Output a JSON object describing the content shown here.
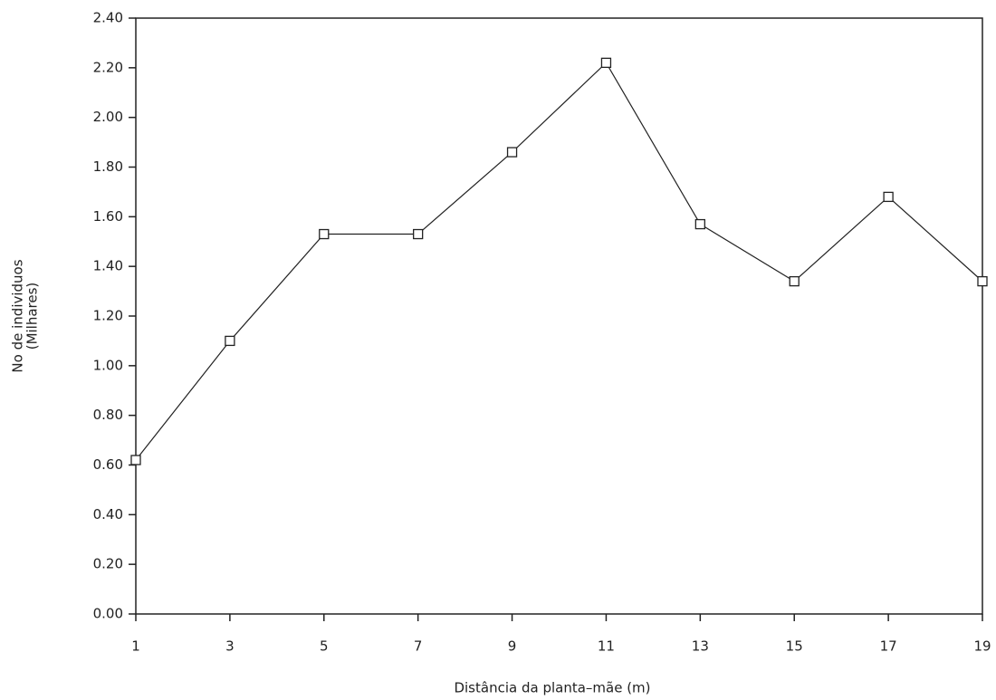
{
  "chart_data": {
    "type": "line",
    "y_label": [
      "No de individuos",
      "(Milhares)"
    ],
    "x_label": "Distância da planta–mãe (m)",
    "x": [
      1,
      3,
      5,
      7,
      9,
      11,
      13,
      15,
      17,
      19
    ],
    "series": [
      {
        "color": "#222222",
        "values": [
          0.62,
          1.1,
          1.53,
          1.53,
          1.86,
          2.22,
          1.57,
          1.34,
          1.68,
          1.34
        ]
      }
    ],
    "xlim": [
      1,
      19
    ],
    "xticks": [
      1,
      3,
      5,
      7,
      9,
      11,
      13,
      15,
      17,
      19
    ],
    "ylim": [
      0,
      2.4
    ],
    "yticks": [
      {
        "value": 0,
        "label": "0.00"
      },
      {
        "value": 0.2,
        "label": "0.20"
      },
      {
        "value": 0.4,
        "label": "0.40"
      },
      {
        "value": 0.6,
        "label": "0.60"
      },
      {
        "value": 0.8,
        "label": "0.80"
      },
      {
        "value": 1,
        "label": "1.00"
      },
      {
        "value": 1.2,
        "label": "1.20"
      },
      {
        "value": 1.4,
        "label": "1.40"
      },
      {
        "value": 1.6,
        "label": "1.60"
      },
      {
        "value": 1.8,
        "label": "1.80"
      },
      {
        "value": 2,
        "label": "2.00"
      },
      {
        "value": 2.2,
        "label": "2.20"
      },
      {
        "value": 2.4,
        "label": "2.40"
      }
    ]
  }
}
